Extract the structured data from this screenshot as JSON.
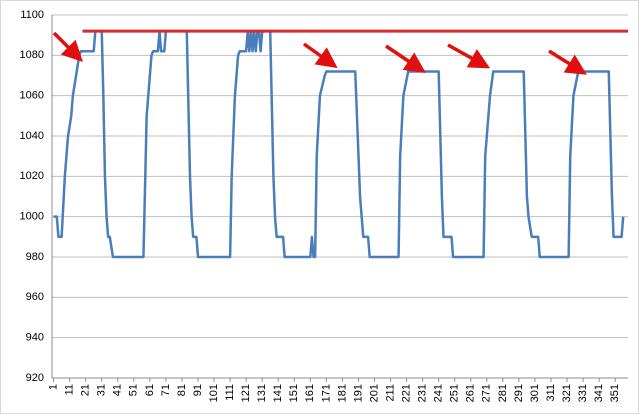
{
  "chart_data": {
    "type": "line",
    "x": [
      1,
      3,
      4,
      6,
      8,
      10,
      12,
      13,
      15,
      17,
      18,
      26,
      27,
      31,
      32,
      33,
      34,
      35,
      36,
      38,
      57,
      59,
      62,
      63,
      66,
      67,
      68,
      70,
      71,
      84,
      86,
      87,
      88,
      90,
      91,
      111,
      112,
      114,
      116,
      117,
      121,
      122,
      123,
      124,
      125,
      126,
      127,
      128,
      129,
      130,
      131,
      136,
      138,
      139,
      140,
      144,
      145,
      161,
      162,
      163,
      164,
      165,
      167,
      170,
      171,
      189,
      192,
      193,
      194,
      197,
      198,
      216,
      217,
      219,
      222,
      241,
      243,
      244,
      249,
      250,
      269,
      270,
      273,
      275,
      294,
      296,
      297,
      299,
      303,
      304,
      322,
      323,
      325,
      328,
      347,
      349,
      350,
      355,
      356
    ],
    "values": [
      1000,
      1000,
      990,
      990,
      1020,
      1040,
      1050,
      1060,
      1070,
      1080,
      1082,
      1082,
      1092,
      1092,
      1060,
      1020,
      1000,
      990,
      990,
      980,
      980,
      1050,
      1080,
      1082,
      1082,
      1092,
      1082,
      1082,
      1092,
      1092,
      1020,
      1000,
      990,
      990,
      980,
      980,
      1020,
      1060,
      1080,
      1082,
      1082,
      1092,
      1082,
      1092,
      1082,
      1092,
      1082,
      1092,
      1092,
      1082,
      1092,
      1092,
      1020,
      1000,
      990,
      990,
      980,
      980,
      990,
      980,
      980,
      1030,
      1060,
      1070,
      1072,
      1072,
      1010,
      1000,
      990,
      990,
      980,
      980,
      1030,
      1060,
      1072,
      1072,
      1010,
      990,
      990,
      980,
      980,
      1030,
      1060,
      1072,
      1072,
      1010,
      1000,
      990,
      990,
      980,
      980,
      1030,
      1060,
      1072,
      1072,
      1010,
      990,
      990,
      1000
    ],
    "color": "#4a7ebb",
    "xlim": [
      0,
      359
    ],
    "xticks": [
      1,
      11,
      21,
      31,
      41,
      51,
      61,
      71,
      81,
      91,
      101,
      111,
      121,
      131,
      141,
      151,
      161,
      171,
      181,
      191,
      201,
      211,
      221,
      231,
      241,
      251,
      261,
      271,
      281,
      291,
      301,
      311,
      321,
      331,
      341,
      351
    ],
    "ylim": [
      920,
      1100
    ],
    "yticks": [
      920,
      940,
      960,
      980,
      1000,
      1020,
      1040,
      1060,
      1080,
      1100
    ],
    "grid": true,
    "reference_line": {
      "x": [
        19,
        359
      ],
      "values": [
        1092,
        1092
      ],
      "color": "#d62c2c"
    }
  }
}
